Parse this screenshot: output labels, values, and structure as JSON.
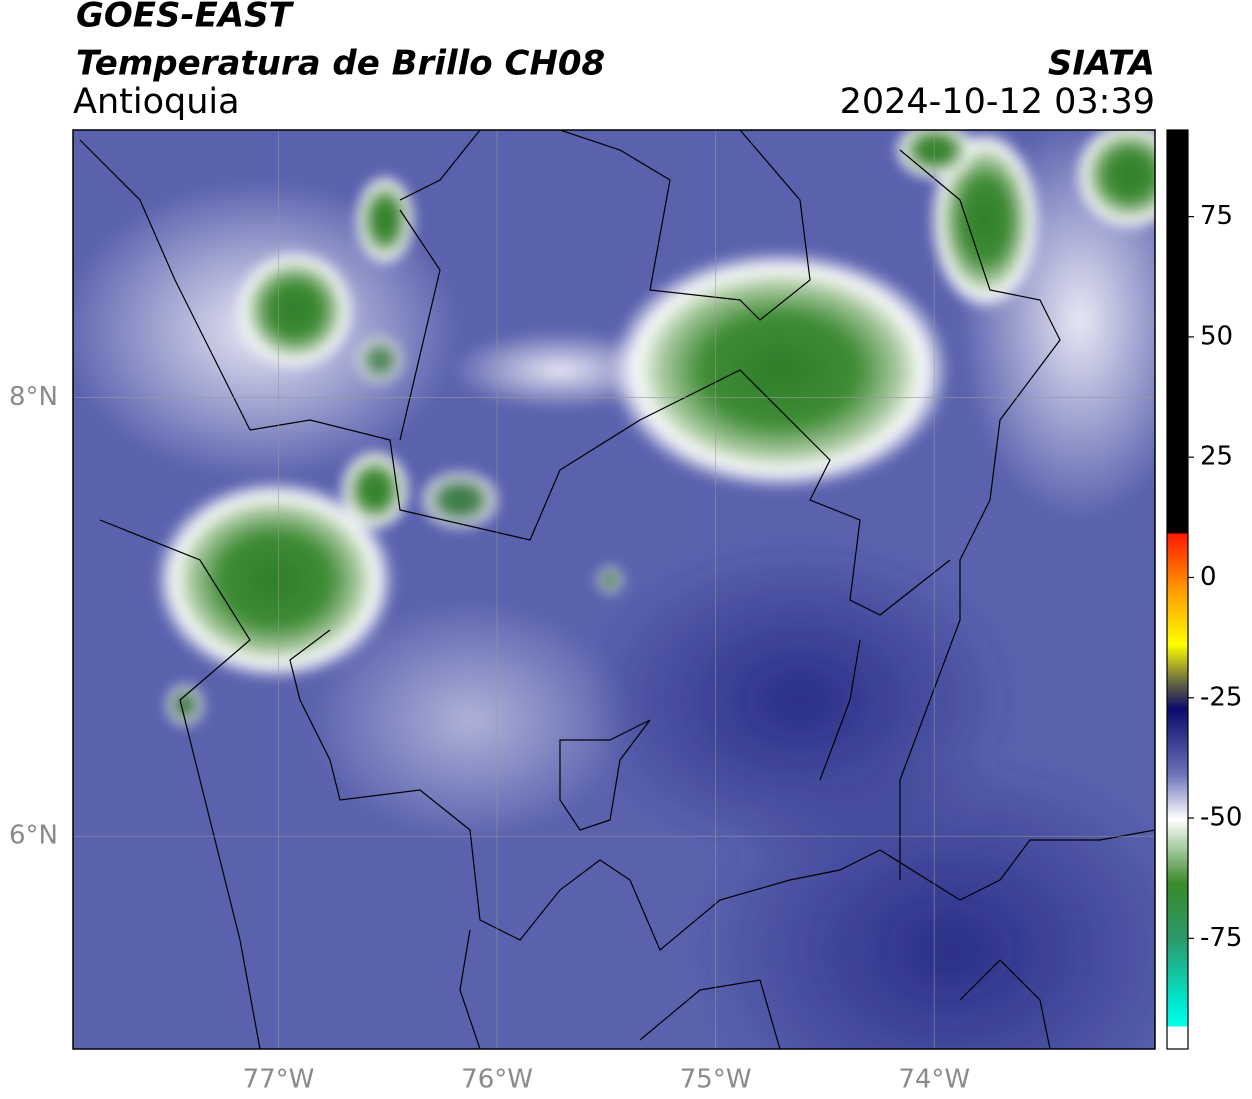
{
  "map": {
    "title": "GOES-EAST",
    "subtitle": "Temperatura de Brillo CH08",
    "region": "Antioquia",
    "source": "SIATA",
    "datetime": "2024-10-12 03:39",
    "xlim": [
      -77.94,
      -72.99
    ],
    "ylim": [
      5.03,
      9.22
    ],
    "xticks": [
      {
        "value": -77,
        "label": "77°W"
      },
      {
        "value": -76,
        "label": "76°W"
      },
      {
        "value": -75,
        "label": "75°W"
      },
      {
        "value": -74,
        "label": "74°W"
      }
    ],
    "yticks": [
      {
        "value": 8,
        "label": "8°N"
      },
      {
        "value": 6,
        "label": "6°N"
      }
    ],
    "grid": true,
    "colorbar": {
      "lim": [
        -98,
        93
      ],
      "ticks": [
        75,
        50,
        25,
        0,
        -25,
        -50,
        -75
      ]
    }
  }
}
